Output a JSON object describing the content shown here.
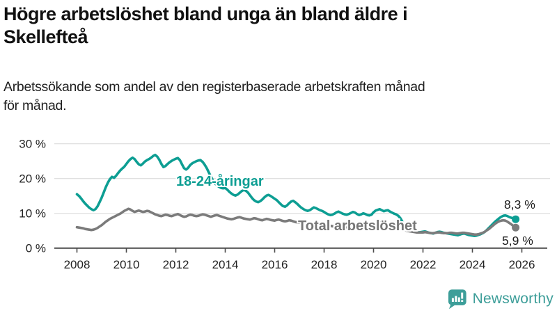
{
  "header": {
    "title_lines": [
      "Högre arbetslöshet bland unga än bland äldre i",
      "Skellefteå"
    ],
    "subtitle_lines": [
      "Arbetssökande som andel av den registerbaserade arbetskraften månad",
      "för månad."
    ]
  },
  "chart_data": {
    "type": "line",
    "title": "Högre arbetslöshet bland unga än bland äldre i Skellefteå",
    "subtitle": "Arbetssökande som andel av den registerbaserade arbetskraften månad för månad.",
    "grid": true,
    "legend_position": "inline-labels",
    "ylim": [
      0,
      32
    ],
    "y_ticks": [
      0,
      10,
      20,
      30
    ],
    "y_tick_labels": [
      "0 %",
      "10 %",
      "20 %",
      "30 %"
    ],
    "x_start_year": 2008,
    "frequency": "monthly",
    "x_ticks": [
      2008,
      2010,
      2012,
      2014,
      2016,
      2018,
      2020,
      2022,
      2024,
      2026
    ],
    "x_tick_labels": [
      "2008",
      "2010",
      "2012",
      "2014",
      "2016",
      "2018",
      "2020",
      "2022",
      "2024",
      "2026"
    ],
    "axis_color": "#4a4a4a",
    "gridline_color": "#dcdcdc",
    "tick_label_color": "#222222",
    "series": [
      {
        "name": "18-24-åringar",
        "color": "#0d9e93",
        "end_label": "8,3 %",
        "end_value": 8.3,
        "values": [
          15.5,
          15.0,
          14.3,
          13.5,
          12.8,
          12.2,
          11.6,
          11.2,
          10.9,
          11.2,
          12.0,
          13.2,
          14.5,
          16.0,
          17.5,
          18.8,
          19.8,
          20.5,
          20.2,
          20.8,
          21.6,
          22.3,
          22.9,
          23.4,
          24.2,
          25.0,
          25.6,
          26.0,
          25.6,
          24.8,
          24.1,
          23.8,
          24.3,
          24.9,
          25.3,
          25.6,
          26.0,
          26.5,
          26.8,
          26.3,
          25.4,
          24.2,
          23.3,
          23.6,
          24.2,
          24.7,
          25.1,
          25.4,
          25.7,
          25.9,
          25.3,
          24.1,
          23.0,
          22.6,
          23.1,
          23.9,
          24.4,
          24.7,
          25.0,
          25.2,
          25.3,
          24.8,
          24.0,
          23.0,
          21.8,
          20.6,
          19.5,
          18.6,
          18.0,
          17.6,
          17.3,
          17.2,
          17.3,
          16.8,
          16.2,
          15.7,
          15.3,
          15.1,
          15.4,
          15.9,
          16.4,
          16.7,
          16.5,
          16.0,
          15.2,
          14.4,
          13.8,
          13.4,
          13.2,
          13.5,
          14.0,
          14.6,
          15.1,
          15.3,
          15.0,
          14.6,
          14.2,
          13.8,
          13.2,
          12.6,
          12.1,
          11.9,
          12.3,
          12.9,
          13.4,
          13.6,
          13.2,
          12.7,
          12.1,
          11.6,
          11.2,
          10.9,
          10.7,
          10.9,
          11.3,
          11.7,
          11.5,
          11.2,
          10.9,
          10.7,
          10.4,
          10.0,
          9.7,
          9.5,
          9.6,
          9.9,
          10.3,
          10.5,
          10.2,
          9.9,
          9.7,
          9.6,
          9.8,
          10.1,
          10.4,
          10.2,
          9.8,
          9.5,
          9.7,
          10.0,
          9.8,
          9.5,
          9.4,
          9.6,
          10.3,
          10.8,
          11.0,
          11.2,
          10.9,
          10.6,
          10.8,
          10.9,
          10.5,
          10.2,
          9.9,
          9.7,
          9.3,
          8.6,
          7.6,
          6.6,
          5.9,
          5.4,
          5.1,
          4.9,
          4.7,
          4.6,
          4.5,
          4.6,
          4.7,
          4.8,
          4.6,
          4.4,
          4.3,
          4.2,
          4.4,
          4.6,
          4.7,
          4.6,
          4.4,
          4.3,
          4.2,
          4.1,
          4.0,
          3.9,
          3.8,
          3.7,
          3.9,
          4.1,
          4.2,
          4.0,
          3.8,
          3.7,
          3.6,
          3.5,
          3.6,
          3.8,
          4.0,
          4.3,
          4.7,
          5.2,
          5.8,
          6.4,
          7.0,
          7.6,
          8.1,
          8.6,
          9.0,
          9.3,
          9.4,
          9.2,
          8.9,
          8.7,
          8.5,
          8.3
        ]
      },
      {
        "name": "Total arbetslöshet",
        "color": "#7b7b7b",
        "end_label": "5,9 %",
        "end_value": 5.9,
        "values": [
          6.0,
          5.9,
          5.8,
          5.7,
          5.5,
          5.4,
          5.3,
          5.2,
          5.3,
          5.5,
          5.8,
          6.2,
          6.6,
          7.1,
          7.6,
          8.0,
          8.4,
          8.7,
          9.0,
          9.3,
          9.6,
          9.9,
          10.3,
          10.7,
          11.0,
          11.3,
          11.1,
          10.7,
          10.4,
          10.6,
          10.8,
          10.6,
          10.4,
          10.5,
          10.7,
          10.6,
          10.3,
          10.0,
          9.7,
          9.5,
          9.3,
          9.2,
          9.4,
          9.6,
          9.5,
          9.3,
          9.2,
          9.4,
          9.6,
          9.8,
          9.5,
          9.2,
          9.0,
          9.1,
          9.4,
          9.6,
          9.5,
          9.3,
          9.2,
          9.3,
          9.5,
          9.7,
          9.6,
          9.4,
          9.2,
          9.0,
          9.2,
          9.4,
          9.5,
          9.3,
          9.1,
          8.9,
          8.7,
          8.5,
          8.4,
          8.3,
          8.4,
          8.6,
          8.8,
          8.9,
          8.7,
          8.5,
          8.4,
          8.3,
          8.2,
          8.4,
          8.6,
          8.5,
          8.3,
          8.1,
          8.0,
          8.2,
          8.4,
          8.3,
          8.1,
          8.0,
          7.9,
          8.1,
          8.2,
          8.0,
          7.8,
          7.7,
          7.8,
          8.0,
          7.9,
          7.7,
          7.5,
          7.4,
          7.3,
          7.4,
          7.5,
          7.4,
          7.2,
          7.1,
          7.2,
          7.3,
          7.2,
          7.0,
          6.9,
          6.8,
          6.7,
          6.6,
          6.5,
          6.4,
          6.3,
          6.2,
          6.3,
          6.4,
          6.3,
          6.2,
          6.1,
          6.0,
          6.0,
          6.1,
          6.1,
          6.0,
          5.9,
          5.8,
          5.9,
          6.0,
          5.9,
          5.8,
          5.8,
          5.9,
          6.3,
          6.7,
          7.0,
          7.3,
          7.4,
          7.3,
          7.2,
          7.1,
          6.9,
          6.7,
          6.5,
          6.3,
          6.0,
          5.7,
          5.4,
          5.2,
          5.0,
          4.9,
          4.8,
          4.7,
          4.6,
          4.5,
          4.5,
          4.5,
          4.5,
          4.6,
          4.5,
          4.4,
          4.3,
          4.3,
          4.4,
          4.5,
          4.5,
          4.4,
          4.3,
          4.3,
          4.3,
          4.4,
          4.4,
          4.3,
          4.2,
          4.2,
          4.3,
          4.4,
          4.4,
          4.3,
          4.2,
          4.1,
          4.0,
          3.9,
          3.9,
          4.0,
          4.2,
          4.4,
          4.7,
          5.1,
          5.5,
          6.0,
          6.5,
          7.0,
          7.4,
          7.7,
          7.9,
          8.0,
          7.9,
          7.6,
          7.2,
          6.8,
          6.3,
          5.9
        ]
      }
    ]
  },
  "branding": {
    "logo_text": "Newsworthy",
    "logo_color": "#3d9e99",
    "logo_icon": "bar-chart-speech-bubble-icon"
  }
}
